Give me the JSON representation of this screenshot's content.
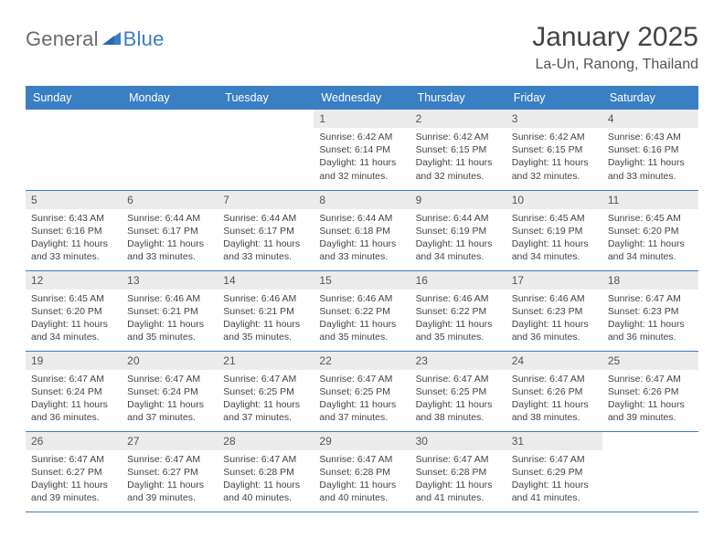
{
  "brand": {
    "text1": "General",
    "text2": "Blue",
    "triangle_color": "#3a7fc4"
  },
  "title": "January 2025",
  "location": "La-Un, Ranong, Thailand",
  "colors": {
    "header_bg": "#3a7fc4",
    "header_fg": "#ffffff",
    "daynum_bg": "#ececec",
    "row_border": "#3a7fc4",
    "body_text": "#444444",
    "page_bg": "#ffffff"
  },
  "typography": {
    "title_fontsize": 30,
    "location_fontsize": 16,
    "dow_fontsize": 12.5,
    "daynum_fontsize": 12,
    "cell_fontsize": 10.5,
    "font_family": "Arial"
  },
  "days_of_week": [
    "Sunday",
    "Monday",
    "Tuesday",
    "Wednesday",
    "Thursday",
    "Friday",
    "Saturday"
  ],
  "weeks": [
    [
      null,
      null,
      null,
      {
        "n": "1",
        "sunrise": "6:42 AM",
        "sunset": "6:14 PM",
        "daylight": "11 hours and 32 minutes."
      },
      {
        "n": "2",
        "sunrise": "6:42 AM",
        "sunset": "6:15 PM",
        "daylight": "11 hours and 32 minutes."
      },
      {
        "n": "3",
        "sunrise": "6:42 AM",
        "sunset": "6:15 PM",
        "daylight": "11 hours and 32 minutes."
      },
      {
        "n": "4",
        "sunrise": "6:43 AM",
        "sunset": "6:16 PM",
        "daylight": "11 hours and 33 minutes."
      }
    ],
    [
      {
        "n": "5",
        "sunrise": "6:43 AM",
        "sunset": "6:16 PM",
        "daylight": "11 hours and 33 minutes."
      },
      {
        "n": "6",
        "sunrise": "6:44 AM",
        "sunset": "6:17 PM",
        "daylight": "11 hours and 33 minutes."
      },
      {
        "n": "7",
        "sunrise": "6:44 AM",
        "sunset": "6:17 PM",
        "daylight": "11 hours and 33 minutes."
      },
      {
        "n": "8",
        "sunrise": "6:44 AM",
        "sunset": "6:18 PM",
        "daylight": "11 hours and 33 minutes."
      },
      {
        "n": "9",
        "sunrise": "6:44 AM",
        "sunset": "6:19 PM",
        "daylight": "11 hours and 34 minutes."
      },
      {
        "n": "10",
        "sunrise": "6:45 AM",
        "sunset": "6:19 PM",
        "daylight": "11 hours and 34 minutes."
      },
      {
        "n": "11",
        "sunrise": "6:45 AM",
        "sunset": "6:20 PM",
        "daylight": "11 hours and 34 minutes."
      }
    ],
    [
      {
        "n": "12",
        "sunrise": "6:45 AM",
        "sunset": "6:20 PM",
        "daylight": "11 hours and 34 minutes."
      },
      {
        "n": "13",
        "sunrise": "6:46 AM",
        "sunset": "6:21 PM",
        "daylight": "11 hours and 35 minutes."
      },
      {
        "n": "14",
        "sunrise": "6:46 AM",
        "sunset": "6:21 PM",
        "daylight": "11 hours and 35 minutes."
      },
      {
        "n": "15",
        "sunrise": "6:46 AM",
        "sunset": "6:22 PM",
        "daylight": "11 hours and 35 minutes."
      },
      {
        "n": "16",
        "sunrise": "6:46 AM",
        "sunset": "6:22 PM",
        "daylight": "11 hours and 35 minutes."
      },
      {
        "n": "17",
        "sunrise": "6:46 AM",
        "sunset": "6:23 PM",
        "daylight": "11 hours and 36 minutes."
      },
      {
        "n": "18",
        "sunrise": "6:47 AM",
        "sunset": "6:23 PM",
        "daylight": "11 hours and 36 minutes."
      }
    ],
    [
      {
        "n": "19",
        "sunrise": "6:47 AM",
        "sunset": "6:24 PM",
        "daylight": "11 hours and 36 minutes."
      },
      {
        "n": "20",
        "sunrise": "6:47 AM",
        "sunset": "6:24 PM",
        "daylight": "11 hours and 37 minutes."
      },
      {
        "n": "21",
        "sunrise": "6:47 AM",
        "sunset": "6:25 PM",
        "daylight": "11 hours and 37 minutes."
      },
      {
        "n": "22",
        "sunrise": "6:47 AM",
        "sunset": "6:25 PM",
        "daylight": "11 hours and 37 minutes."
      },
      {
        "n": "23",
        "sunrise": "6:47 AM",
        "sunset": "6:25 PM",
        "daylight": "11 hours and 38 minutes."
      },
      {
        "n": "24",
        "sunrise": "6:47 AM",
        "sunset": "6:26 PM",
        "daylight": "11 hours and 38 minutes."
      },
      {
        "n": "25",
        "sunrise": "6:47 AM",
        "sunset": "6:26 PM",
        "daylight": "11 hours and 39 minutes."
      }
    ],
    [
      {
        "n": "26",
        "sunrise": "6:47 AM",
        "sunset": "6:27 PM",
        "daylight": "11 hours and 39 minutes."
      },
      {
        "n": "27",
        "sunrise": "6:47 AM",
        "sunset": "6:27 PM",
        "daylight": "11 hours and 39 minutes."
      },
      {
        "n": "28",
        "sunrise": "6:47 AM",
        "sunset": "6:28 PM",
        "daylight": "11 hours and 40 minutes."
      },
      {
        "n": "29",
        "sunrise": "6:47 AM",
        "sunset": "6:28 PM",
        "daylight": "11 hours and 40 minutes."
      },
      {
        "n": "30",
        "sunrise": "6:47 AM",
        "sunset": "6:28 PM",
        "daylight": "11 hours and 41 minutes."
      },
      {
        "n": "31",
        "sunrise": "6:47 AM",
        "sunset": "6:29 PM",
        "daylight": "11 hours and 41 minutes."
      },
      null
    ]
  ],
  "labels": {
    "sunrise": "Sunrise:",
    "sunset": "Sunset:",
    "daylight": "Daylight:"
  }
}
